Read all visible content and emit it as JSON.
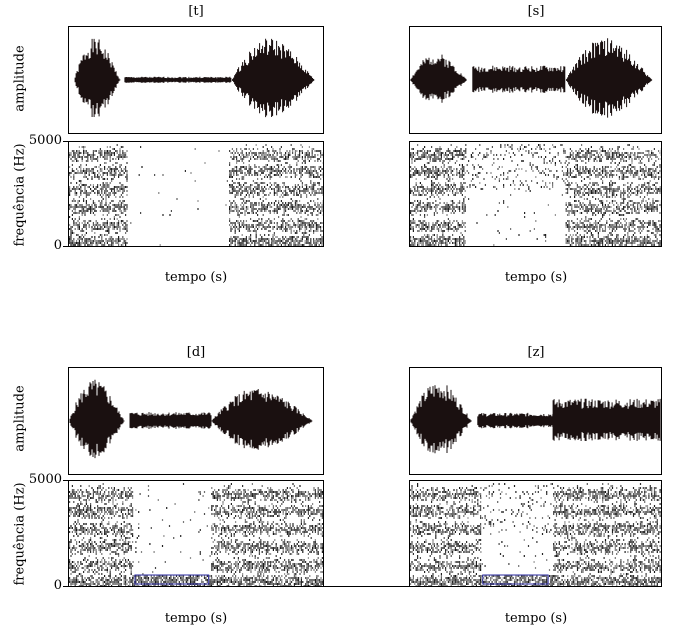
{
  "panels": [
    {
      "title": "[t]",
      "xlabel": "tempo (s)"
    },
    {
      "title": "[s]",
      "xlabel": "tempo (s)"
    },
    {
      "title": "[d]",
      "xlabel": "tempo (s)"
    },
    {
      "title": "[z]",
      "xlabel": "tempo (s)"
    }
  ],
  "ylabels": {
    "amplitude": "amplitude",
    "frequency": "frequência (Hz)"
  },
  "freq_ticks": {
    "top": "5000",
    "bottom": "0"
  },
  "colors": {
    "waveform": "#1a1010",
    "voicing_box": "#2a2aa0"
  }
}
